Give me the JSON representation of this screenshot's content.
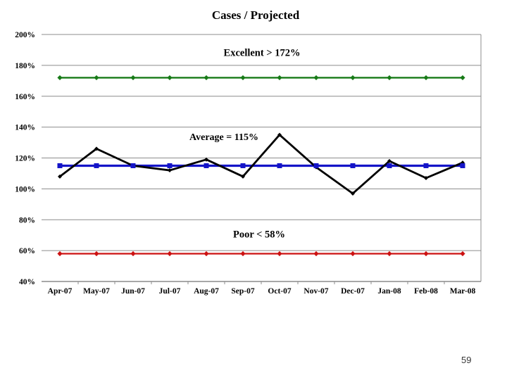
{
  "page": {
    "number": "59"
  },
  "chart_data": {
    "type": "line",
    "title": "Cases / Projected",
    "categories": [
      "Apr-07",
      "May-07",
      "Jun-07",
      "Jul-07",
      "Aug-07",
      "Sep-07",
      "Oct-07",
      "Nov-07",
      "Dec-07",
      "Jan-08",
      "Feb-08",
      "Mar-08"
    ],
    "y_ticks": [
      {
        "label": "200%",
        "value": 200
      },
      {
        "label": "180%",
        "value": 180
      },
      {
        "label": "160%",
        "value": 160
      },
      {
        "label": "140%",
        "value": 140
      },
      {
        "label": "120%",
        "value": 120
      },
      {
        "label": "100%",
        "value": 100
      },
      {
        "label": "80%",
        "value": 80
      },
      {
        "label": "60%",
        "value": 60
      },
      {
        "label": "40%",
        "value": 40
      }
    ],
    "ylim": [
      40,
      200
    ],
    "grid": true,
    "legend_position": "none",
    "series": [
      {
        "id": "excellent-threshold",
        "name": "Excellent > 172%",
        "color": "#177A17",
        "marker": "diamond",
        "width": 2.4,
        "marker_z": 0,
        "values": [
          172,
          172,
          172,
          172,
          172,
          172,
          172,
          172,
          172,
          172,
          172,
          172
        ]
      },
      {
        "id": "poor-threshold",
        "name": "Poor < 58%",
        "color": "#CC1111",
        "marker": "diamond",
        "width": 2.2,
        "marker_z": 1,
        "values": [
          58,
          58,
          58,
          58,
          58,
          58,
          58,
          58,
          58,
          58,
          58,
          58
        ]
      },
      {
        "id": "average",
        "name": "Average = 115%",
        "color": "#1414C8",
        "marker": "square",
        "width": 3.2,
        "marker_z": 3,
        "values": [
          115,
          115,
          115,
          115,
          115,
          115,
          115,
          115,
          115,
          115,
          115,
          115
        ]
      },
      {
        "id": "cases-projected",
        "name": "Cases / Projected",
        "color": "#000000",
        "marker": "diamond-small",
        "width": 2.8,
        "marker_z": 2,
        "values": [
          108,
          126,
          115,
          112,
          119,
          108,
          135,
          114,
          97,
          118,
          107,
          117
        ]
      }
    ],
    "annotations": [
      {
        "text": "Excellent > 172%"
      },
      {
        "text": "Average = 115%"
      },
      {
        "text": "Poor < 58%"
      }
    ]
  },
  "colors": {
    "gridline": "#8C8C8C",
    "background": "#FFFFFF"
  }
}
